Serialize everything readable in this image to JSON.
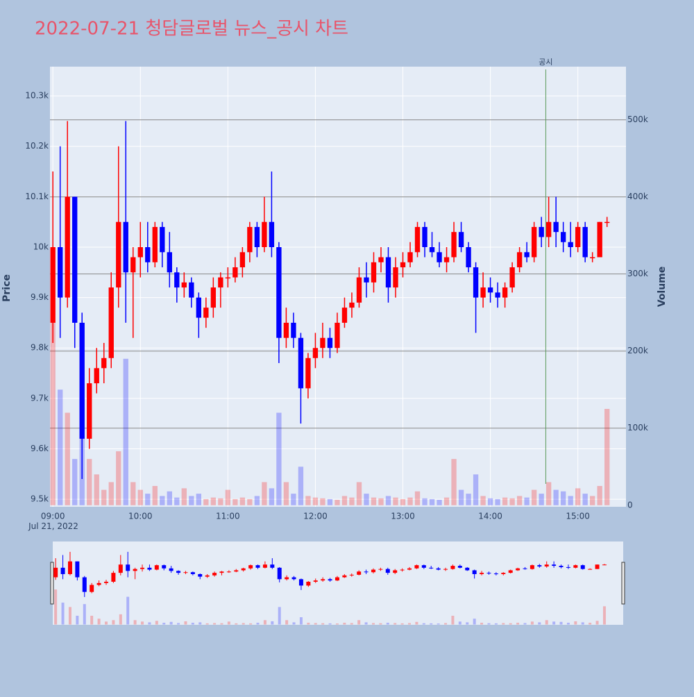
{
  "chart_data": {
    "type": "candlestick",
    "title": "2022-07-21 청담글로벌 뉴스_공시 차트",
    "y_label": "Price",
    "y2_label": "Volume",
    "date_label": "Jul 21, 2022",
    "increasing_color": "#ff0000",
    "decreasing_color": "#0000ff",
    "x": [
      "09:00",
      "09:05",
      "09:10",
      "09:15",
      "09:20",
      "09:25",
      "09:30",
      "09:35",
      "09:40",
      "09:45",
      "09:50",
      "09:55",
      "10:00",
      "10:05",
      "10:10",
      "10:15",
      "10:20",
      "10:25",
      "10:30",
      "10:35",
      "10:40",
      "10:45",
      "10:50",
      "10:55",
      "11:00",
      "11:05",
      "11:10",
      "11:15",
      "11:20",
      "11:25",
      "11:30",
      "11:35",
      "11:40",
      "11:45",
      "11:50",
      "11:55",
      "12:00",
      "12:05",
      "12:10",
      "12:15",
      "12:20",
      "12:25",
      "12:30",
      "12:35",
      "12:40",
      "12:45",
      "12:50",
      "12:55",
      "13:00",
      "13:05",
      "13:10",
      "13:15",
      "13:20",
      "13:25",
      "13:30",
      "13:35",
      "13:40",
      "13:45",
      "13:50",
      "13:55",
      "14:00",
      "14:05",
      "14:10",
      "14:15",
      "14:20",
      "14:25",
      "14:30",
      "14:35",
      "14:40",
      "14:45",
      "14:50",
      "14:55",
      "15:00",
      "15:05",
      "15:10",
      "15:15",
      "15:20"
    ],
    "open": [
      9850,
      10000,
      9900,
      10100,
      9850,
      9620,
      9730,
      9760,
      9780,
      9920,
      10050,
      9950,
      9980,
      10000,
      9970,
      10040,
      9990,
      9950,
      9920,
      9930,
      9900,
      9860,
      9880,
      9920,
      9940,
      9940,
      9960,
      9990,
      10040,
      10000,
      10050,
      10000,
      9820,
      9850,
      9820,
      9720,
      9780,
      9800,
      9820,
      9800,
      9850,
      9880,
      9890,
      9940,
      9930,
      9970,
      9980,
      9920,
      9960,
      9970,
      9990,
      10040,
      10000,
      9990,
      9970,
      9980,
      10030,
      10000,
      9960,
      9900,
      9920,
      9910,
      9900,
      9920,
      9960,
      9990,
      9980,
      10040,
      10020,
      10050,
      10030,
      10010,
      10000,
      10040,
      9980,
      9980,
      10050
    ],
    "high": [
      10150,
      10200,
      10250,
      10100,
      9870,
      9760,
      9800,
      9810,
      9950,
      10200,
      10250,
      10000,
      10050,
      10050,
      10050,
      10050,
      10030,
      9960,
      9950,
      9940,
      9910,
      9900,
      9940,
      9950,
      9960,
      9980,
      10000,
      10050,
      10050,
      10100,
      10150,
      10010,
      9880,
      9870,
      9830,
      9790,
      9830,
      9850,
      9840,
      9870,
      9900,
      9910,
      9960,
      9970,
      9990,
      10000,
      10000,
      9980,
      9990,
      10010,
      10050,
      10050,
      10030,
      10010,
      10000,
      10050,
      10050,
      10010,
      9970,
      9950,
      9940,
      9930,
      9930,
      9970,
      10000,
      10010,
      10050,
      10060,
      10100,
      10100,
      10050,
      10050,
      10050,
      10050,
      9990,
      10050,
      10060
    ],
    "low": [
      9810,
      9820,
      9880,
      9800,
      9540,
      9600,
      9710,
      9730,
      9760,
      9880,
      9850,
      9820,
      9940,
      9950,
      9960,
      9960,
      9920,
      9890,
      9900,
      9880,
      9820,
      9840,
      9860,
      9880,
      9920,
      9930,
      9940,
      9970,
      9980,
      9990,
      9980,
      9770,
      9800,
      9800,
      9650,
      9700,
      9760,
      9780,
      9780,
      9790,
      9840,
      9860,
      9880,
      9900,
      9910,
      9950,
      9890,
      9900,
      9940,
      9960,
      9980,
      9980,
      9980,
      9960,
      9950,
      9970,
      9990,
      9950,
      9830,
      9880,
      9890,
      9880,
      9880,
      9910,
      9950,
      9970,
      9970,
      10000,
      10000,
      10000,
      9990,
      9980,
      9990,
      9970,
      9970,
      9980,
      10040
    ],
    "close": [
      10000,
      9900,
      10100,
      9850,
      9620,
      9730,
      9760,
      9780,
      9920,
      10050,
      9950,
      9980,
      10000,
      9970,
      10040,
      9990,
      9950,
      9920,
      9930,
      9900,
      9860,
      9880,
      9920,
      9940,
      9940,
      9960,
      9990,
      10040,
      10000,
      10050,
      10000,
      9820,
      9850,
      9820,
      9720,
      9780,
      9800,
      9820,
      9800,
      9850,
      9880,
      9890,
      9940,
      9930,
      9970,
      9980,
      9920,
      9960,
      9970,
      9990,
      10040,
      10000,
      9990,
      9970,
      9980,
      10030,
      10000,
      9960,
      9900,
      9920,
      9910,
      9900,
      9920,
      9960,
      9990,
      9980,
      10040,
      10020,
      10050,
      10030,
      10010,
      10000,
      10040,
      9980,
      9980,
      10050,
      10050
    ],
    "volume": [
      240000,
      150000,
      120000,
      60000,
      140000,
      60000,
      40000,
      20000,
      30000,
      70000,
      190000,
      30000,
      20000,
      15000,
      25000,
      12000,
      18000,
      10000,
      22000,
      12000,
      15000,
      8000,
      10000,
      9000,
      20000,
      8000,
      10000,
      8000,
      12000,
      30000,
      22000,
      120000,
      30000,
      15000,
      50000,
      12000,
      10000,
      9000,
      8000,
      7000,
      12000,
      10000,
      30000,
      15000,
      10000,
      9000,
      12000,
      10000,
      8000,
      10000,
      18000,
      9000,
      8000,
      7000,
      10000,
      60000,
      20000,
      15000,
      40000,
      12000,
      9000,
      8000,
      10000,
      9000,
      12000,
      10000,
      20000,
      15000,
      30000,
      20000,
      18000,
      12000,
      22000,
      15000,
      12000,
      25000,
      125000
    ],
    "xlim": [
      "08:58",
      "15:33"
    ],
    "xticks": [
      "09:00",
      "10:00",
      "11:00",
      "12:00",
      "13:00",
      "14:00",
      "15:00"
    ],
    "ylim": [
      9485,
      10358
    ],
    "yticks": [
      {
        "value": 9500,
        "label": "9.5k"
      },
      {
        "value": 9600,
        "label": "9.6k"
      },
      {
        "value": 9700,
        "label": "9.7k"
      },
      {
        "value": 9800,
        "label": "9.8k"
      },
      {
        "value": 9900,
        "label": "9.9k"
      },
      {
        "value": 10000,
        "label": "10k"
      },
      {
        "value": 10100,
        "label": "10.1k"
      },
      {
        "value": 10200,
        "label": "10.2k"
      },
      {
        "value": 10300,
        "label": "10.3k"
      }
    ],
    "y2lim": [
      -2000,
      569000
    ],
    "y2ticks": [
      0,
      {
        "value": 100000,
        "label": "100k"
      },
      {
        "value": 200000,
        "label": "200k"
      },
      {
        "value": 300000,
        "label": "300k"
      },
      {
        "value": 400000,
        "label": "400k"
      },
      {
        "value": 500000,
        "label": "500k"
      }
    ],
    "annotation": {
      "x": "14:38",
      "text": "공시",
      "color": "#5a9a5a"
    }
  }
}
